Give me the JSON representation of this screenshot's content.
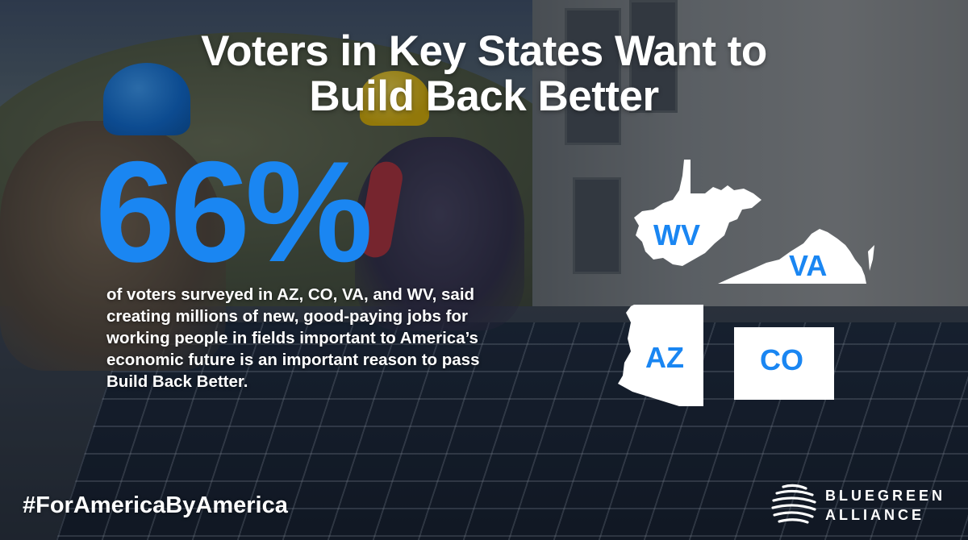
{
  "headline": {
    "line1": "Voters in Key States Want to",
    "line2": "Build Back Better"
  },
  "stat": {
    "value": "66%",
    "description": "of voters surveyed in AZ, CO, VA, and WV, said creating millions of new, good-paying jobs for working people in fields important to America’s economic future is an important reason to pass Build Back Better."
  },
  "states": {
    "wv": "WV",
    "va": "VA",
    "az": "AZ",
    "co": "CO"
  },
  "hashtag": "#ForAmericaByAmerica",
  "logo": {
    "line1": "BLUEGREEN",
    "line2": "ALLIANCE"
  },
  "colors": {
    "accent": "#1a86f2",
    "text": "#ffffff"
  }
}
